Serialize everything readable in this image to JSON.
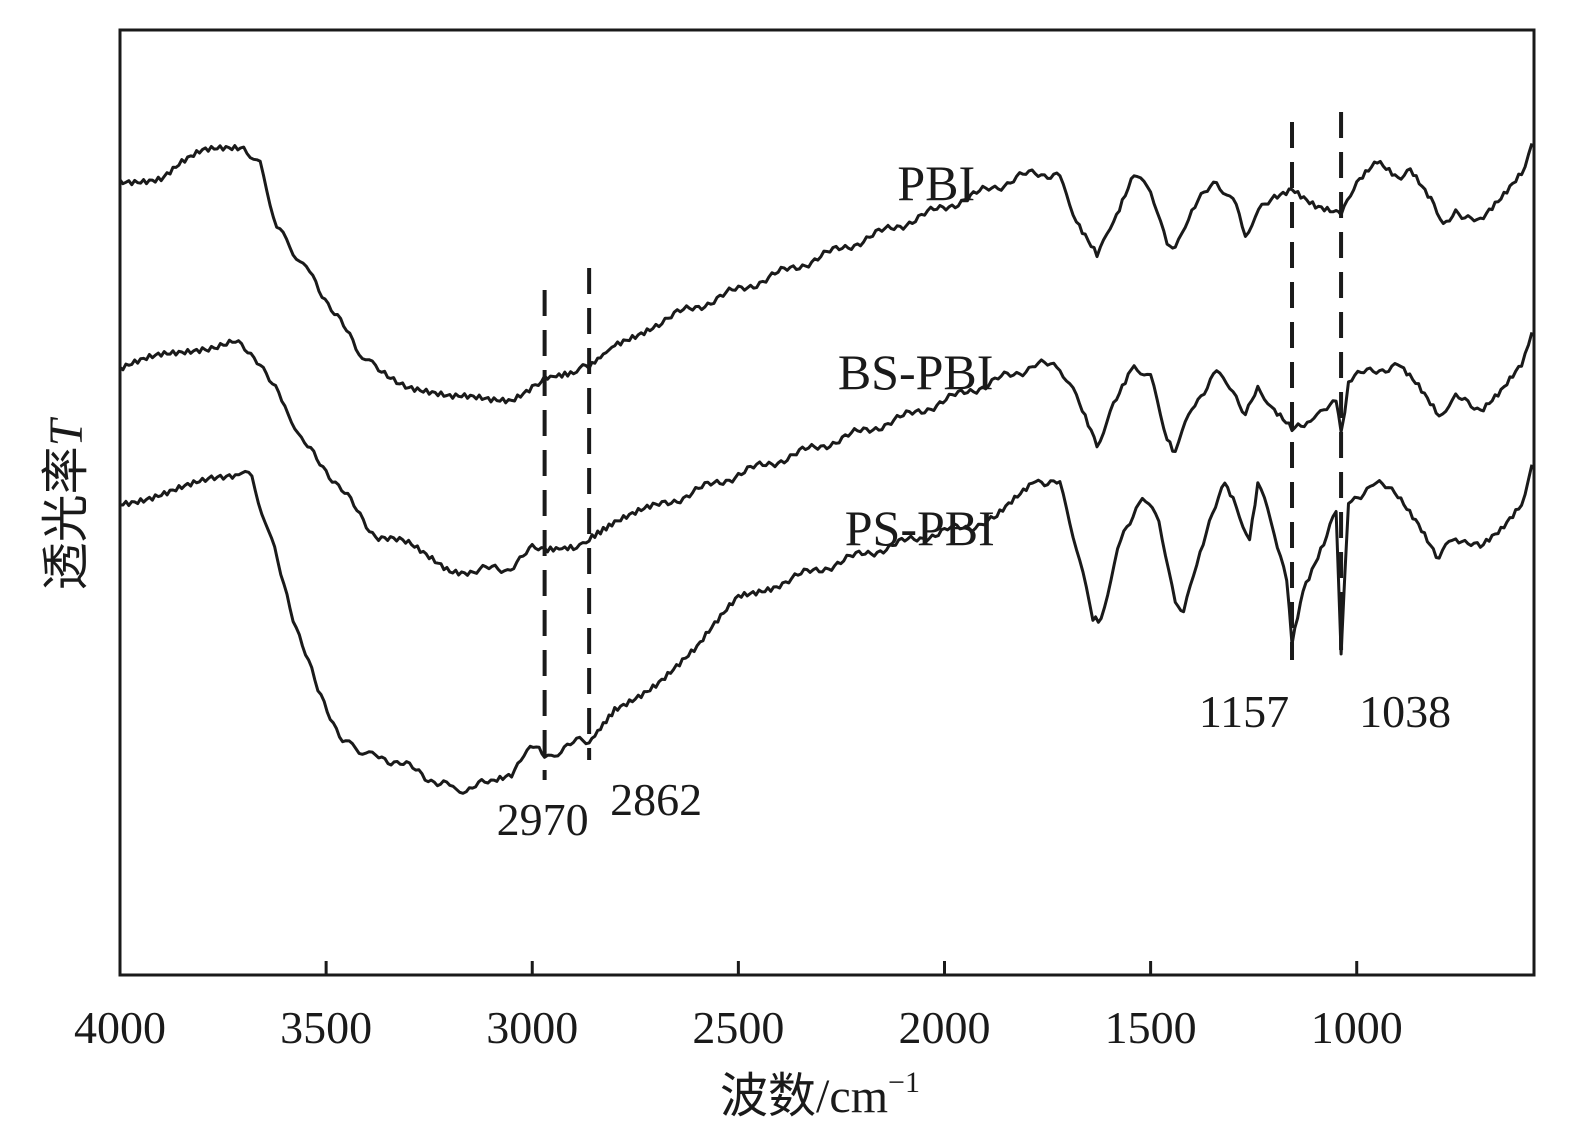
{
  "chart_data": {
    "type": "line",
    "xlabel": "波数/cm",
    "xlabel_sup": "−1",
    "ylabel": "透光率",
    "ylabel_italic": "T",
    "xlim": [
      4000,
      570
    ],
    "x_reversed": true,
    "xticks": [
      "4000",
      "3500",
      "3000",
      "2500",
      "2000",
      "1500",
      "1000"
    ],
    "grid": false,
    "legend": "inline labels",
    "series": [
      {
        "name": "PBI",
        "points": [
          [
            4000,
            0.84
          ],
          [
            3900,
            0.845
          ],
          [
            3850,
            0.86
          ],
          [
            3800,
            0.87
          ],
          [
            3700,
            0.875
          ],
          [
            3660,
            0.86
          ],
          [
            3620,
            0.79
          ],
          [
            3580,
            0.765
          ],
          [
            3540,
            0.745
          ],
          [
            3480,
            0.7
          ],
          [
            3420,
            0.66
          ],
          [
            3380,
            0.64
          ],
          [
            3300,
            0.625
          ],
          [
            3200,
            0.61
          ],
          [
            3100,
            0.608
          ],
          [
            3050,
            0.61
          ],
          [
            3000,
            0.625
          ],
          [
            2970,
            0.63
          ],
          [
            2900,
            0.635
          ],
          [
            2862,
            0.645
          ],
          [
            2800,
            0.665
          ],
          [
            2700,
            0.69
          ],
          [
            2500,
            0.725
          ],
          [
            2300,
            0.76
          ],
          [
            2100,
            0.795
          ],
          [
            1900,
            0.83
          ],
          [
            1780,
            0.85
          ],
          [
            1720,
            0.845
          ],
          [
            1680,
            0.8
          ],
          [
            1630,
            0.762
          ],
          [
            1590,
            0.8
          ],
          [
            1540,
            0.85
          ],
          [
            1500,
            0.83
          ],
          [
            1460,
            0.77
          ],
          [
            1440,
            0.765
          ],
          [
            1400,
            0.81
          ],
          [
            1340,
            0.84
          ],
          [
            1300,
            0.82
          ],
          [
            1270,
            0.785
          ],
          [
            1230,
            0.81
          ],
          [
            1200,
            0.825
          ],
          [
            1157,
            0.835
          ],
          [
            1100,
            0.815
          ],
          [
            1050,
            0.805
          ],
          [
            1038,
            0.808
          ],
          [
            1000,
            0.835
          ],
          [
            950,
            0.86
          ],
          [
            900,
            0.845
          ],
          [
            870,
            0.855
          ],
          [
            820,
            0.82
          ],
          [
            790,
            0.79
          ],
          [
            760,
            0.81
          ],
          [
            700,
            0.795
          ],
          [
            650,
            0.82
          ],
          [
            600,
            0.85
          ],
          [
            575,
            0.88
          ]
        ]
      },
      {
        "name": "BS-PBI",
        "points": [
          [
            4000,
            0.64
          ],
          [
            3900,
            0.655
          ],
          [
            3800,
            0.665
          ],
          [
            3720,
            0.668
          ],
          [
            3660,
            0.65
          ],
          [
            3600,
            0.6
          ],
          [
            3560,
            0.565
          ],
          [
            3500,
            0.535
          ],
          [
            3440,
            0.5
          ],
          [
            3380,
            0.465
          ],
          [
            3300,
            0.455
          ],
          [
            3200,
            0.43
          ],
          [
            3150,
            0.428
          ],
          [
            3060,
            0.43
          ],
          [
            3000,
            0.45
          ],
          [
            2970,
            0.452
          ],
          [
            2900,
            0.455
          ],
          [
            2862,
            0.46
          ],
          [
            2800,
            0.48
          ],
          [
            2700,
            0.495
          ],
          [
            2500,
            0.53
          ],
          [
            2300,
            0.56
          ],
          [
            2100,
            0.59
          ],
          [
            1900,
            0.625
          ],
          [
            1780,
            0.645
          ],
          [
            1720,
            0.645
          ],
          [
            1680,
            0.61
          ],
          [
            1630,
            0.562
          ],
          [
            1590,
            0.6
          ],
          [
            1540,
            0.645
          ],
          [
            1500,
            0.63
          ],
          [
            1460,
            0.57
          ],
          [
            1440,
            0.555
          ],
          [
            1400,
            0.6
          ],
          [
            1340,
            0.64
          ],
          [
            1300,
            0.62
          ],
          [
            1270,
            0.59
          ],
          [
            1240,
            0.62
          ],
          [
            1200,
            0.595
          ],
          [
            1157,
            0.575
          ],
          [
            1120,
            0.585
          ],
          [
            1080,
            0.595
          ],
          [
            1050,
            0.61
          ],
          [
            1038,
            0.57
          ],
          [
            1020,
            0.63
          ],
          [
            960,
            0.64
          ],
          [
            900,
            0.645
          ],
          [
            850,
            0.62
          ],
          [
            800,
            0.59
          ],
          [
            760,
            0.61
          ],
          [
            700,
            0.6
          ],
          [
            650,
            0.62
          ],
          [
            600,
            0.645
          ],
          [
            575,
            0.68
          ]
        ]
      },
      {
        "name": "PS-PBI",
        "points": [
          [
            4000,
            0.5
          ],
          [
            3900,
            0.51
          ],
          [
            3800,
            0.52
          ],
          [
            3720,
            0.532
          ],
          [
            3680,
            0.525
          ],
          [
            3640,
            0.47
          ],
          [
            3580,
            0.38
          ],
          [
            3520,
            0.3
          ],
          [
            3460,
            0.25
          ],
          [
            3420,
            0.235
          ],
          [
            3380,
            0.232
          ],
          [
            3320,
            0.225
          ],
          [
            3260,
            0.21
          ],
          [
            3200,
            0.2
          ],
          [
            3160,
            0.195
          ],
          [
            3100,
            0.205
          ],
          [
            3050,
            0.215
          ],
          [
            3020,
            0.235
          ],
          [
            2990,
            0.24
          ],
          [
            2970,
            0.228
          ],
          [
            2930,
            0.24
          ],
          [
            2900,
            0.245
          ],
          [
            2862,
            0.248
          ],
          [
            2800,
            0.28
          ],
          [
            2700,
            0.31
          ],
          [
            2600,
            0.345
          ],
          [
            2500,
            0.4
          ],
          [
            2400,
            0.415
          ],
          [
            2200,
            0.445
          ],
          [
            2000,
            0.47
          ],
          [
            1880,
            0.48
          ],
          [
            1780,
            0.525
          ],
          [
            1720,
            0.52
          ],
          [
            1680,
            0.45
          ],
          [
            1640,
            0.38
          ],
          [
            1620,
            0.375
          ],
          [
            1580,
            0.45
          ],
          [
            1520,
            0.51
          ],
          [
            1480,
            0.48
          ],
          [
            1440,
            0.39
          ],
          [
            1420,
            0.38
          ],
          [
            1380,
            0.45
          ],
          [
            1320,
            0.52
          ],
          [
            1300,
            0.5
          ],
          [
            1260,
            0.46
          ],
          [
            1240,
            0.52
          ],
          [
            1200,
            0.47
          ],
          [
            1170,
            0.42
          ],
          [
            1157,
            0.355
          ],
          [
            1130,
            0.41
          ],
          [
            1080,
            0.46
          ],
          [
            1050,
            0.49
          ],
          [
            1038,
            0.34
          ],
          [
            1020,
            0.5
          ],
          [
            960,
            0.52
          ],
          [
            900,
            0.51
          ],
          [
            850,
            0.48
          ],
          [
            800,
            0.44
          ],
          [
            760,
            0.465
          ],
          [
            700,
            0.45
          ],
          [
            650,
            0.47
          ],
          [
            600,
            0.5
          ],
          [
            575,
            0.54
          ]
        ]
      }
    ],
    "series_labels": [
      {
        "text": "PBI",
        "x": 2020,
        "y": 0.82
      },
      {
        "text": "BS-PBI",
        "x": 2070,
        "y": 0.62
      },
      {
        "text": "PS-PBI",
        "x": 2060,
        "y": 0.455
      }
    ],
    "annotations": [
      {
        "text": "2970",
        "x": 2970
      },
      {
        "text": "2862",
        "x": 2862
      },
      {
        "text": "1157",
        "x": 1157
      },
      {
        "text": "1038",
        "x": 1038
      }
    ]
  }
}
